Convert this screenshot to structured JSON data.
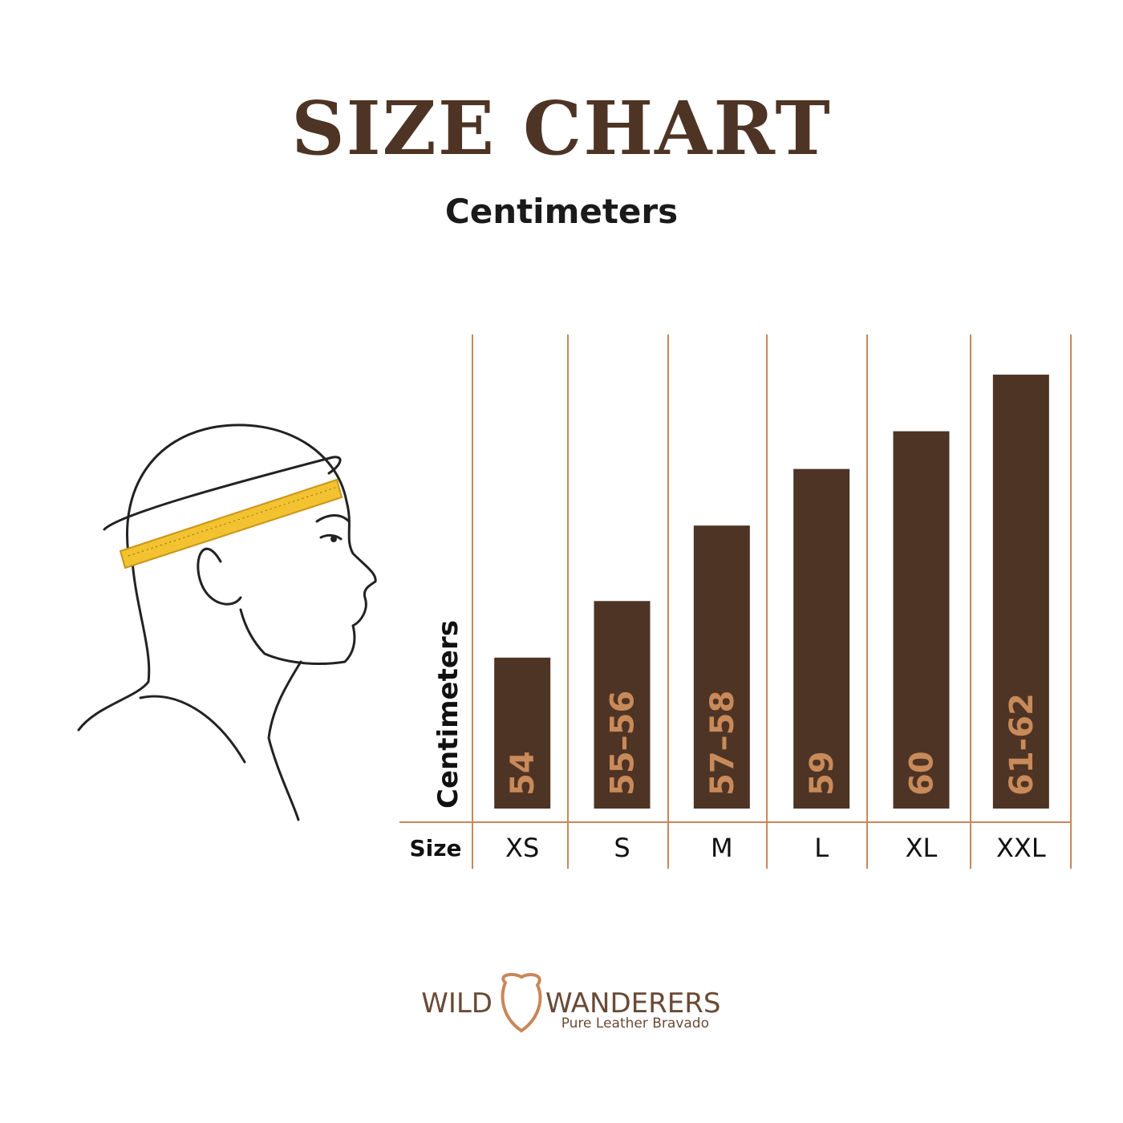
{
  "chart_data": {
    "type": "bar",
    "title": "SIZE CHART",
    "subtitle": "Centimeters",
    "y_label": "Centimeters",
    "x_label": "Size",
    "categories": [
      "XS",
      "S",
      "M",
      "L",
      "XL",
      "XXL"
    ],
    "values": [
      54,
      55.5,
      57.5,
      59,
      60,
      61.5
    ],
    "value_labels": [
      "54",
      "55–56",
      "57–58",
      "59",
      "60",
      "61-62"
    ],
    "color": "#4e3424",
    "label_color": "#c98a5a",
    "ylim": [
      50,
      62.5
    ]
  },
  "footer": {
    "brand_left": "WILD",
    "brand_right": "WANDERERS",
    "tagline": "Pure Leather Bravado"
  }
}
